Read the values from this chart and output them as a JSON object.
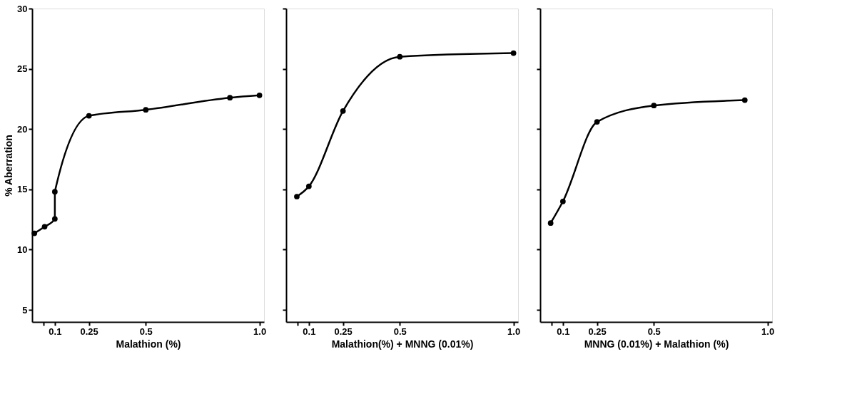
{
  "chart_data": [
    {
      "type": "line",
      "xlabel": "Malathion (%)",
      "ylabel": "% Aberration",
      "marker": "circle",
      "line_style": "solid",
      "grid": false,
      "x": [
        0.01,
        0.055,
        0.1,
        0.1,
        0.25,
        0.5,
        0.87,
        1.0
      ],
      "series": [
        {
          "color": "#000000",
          "values": [
            11.35,
            11.9,
            12.55,
            14.8,
            21.1,
            21.6,
            22.6,
            22.8
          ]
        }
      ],
      "xlim": [
        0,
        1.02
      ],
      "xticks": [
        {
          "value": 0.05,
          "label": null
        },
        {
          "value": 0.1,
          "label": "0.1"
        },
        {
          "value": 0.25,
          "label": "0.25"
        },
        {
          "value": 0.5,
          "label": "0.5"
        },
        {
          "value": 1.0,
          "label": "1.0"
        }
      ],
      "ylim": [
        4,
        30
      ],
      "yticks": [
        5,
        10,
        15,
        20,
        25,
        30
      ]
    },
    {
      "type": "line",
      "xlabel": "Malathion(%) + MNNG (0.01%)",
      "marker": "circle",
      "line_style": "solid",
      "grid": false,
      "tick_labels": "x",
      "x": [
        0.047,
        0.1,
        0.25,
        0.5,
        1.0
      ],
      "series": [
        {
          "color": "#000000",
          "values": [
            14.4,
            15.25,
            21.5,
            26.0,
            26.3
          ]
        }
      ],
      "xlim": [
        0,
        1.02
      ],
      "xticks": [
        {
          "value": 0.05,
          "label": null
        },
        {
          "value": 0.1,
          "label": "0.1"
        },
        {
          "value": 0.25,
          "label": "0.25"
        },
        {
          "value": 0.5,
          "label": "0.5"
        },
        {
          "value": 1.0,
          "label": "1.0"
        }
      ],
      "ylim": [
        4,
        30
      ],
      "yticks": [
        5,
        10,
        15,
        20,
        25,
        30
      ]
    },
    {
      "type": "line",
      "xlabel": "MNNG (0.01%) + Malathion (%)",
      "marker": "circle",
      "line_style": "solid",
      "grid": false,
      "tick_labels": "x",
      "x": [
        0.046,
        0.1,
        0.25,
        0.5,
        0.9
      ],
      "series": [
        {
          "color": "#000000",
          "values": [
            12.2,
            14.0,
            20.6,
            21.95,
            22.4
          ]
        }
      ],
      "xlim": [
        0,
        1.02
      ],
      "xticks": [
        {
          "value": 0.05,
          "label": null
        },
        {
          "value": 0.1,
          "label": "0.1"
        },
        {
          "value": 0.25,
          "label": "0.25"
        },
        {
          "value": 0.5,
          "label": "0.5"
        },
        {
          "value": 1.0,
          "label": "1.0"
        }
      ],
      "ylim": [
        4,
        30
      ],
      "yticks": [
        5,
        10,
        15,
        20,
        25,
        30
      ]
    }
  ]
}
